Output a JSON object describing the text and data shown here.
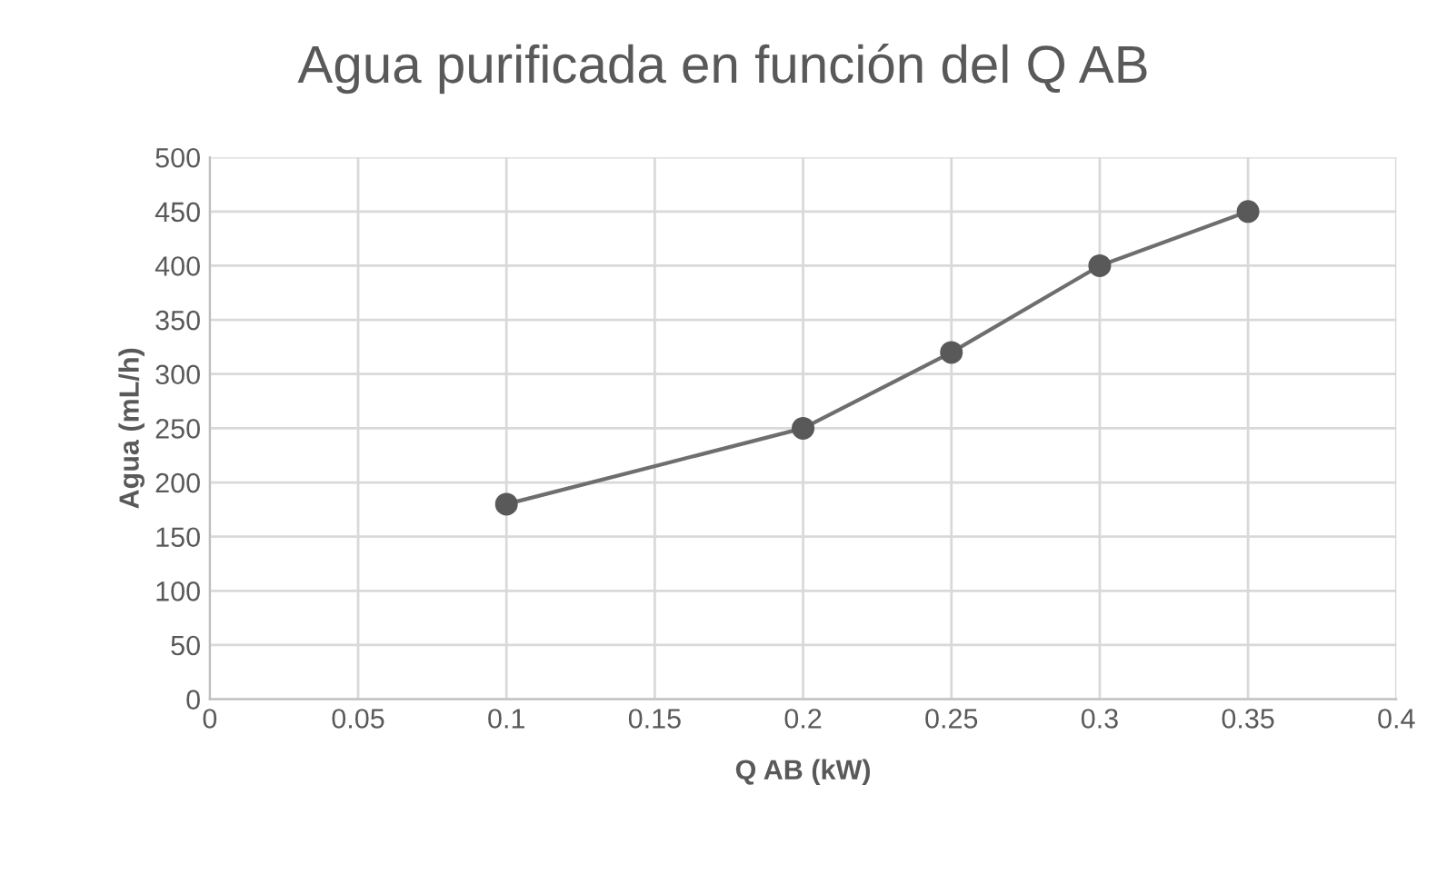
{
  "chart_data": {
    "type": "line",
    "title": "Agua purificada en función del Q AB",
    "xlabel": "Q AB (kW)",
    "ylabel": "Agua (mL/h)",
    "x": [
      0.1,
      0.2,
      0.25,
      0.3,
      0.35
    ],
    "series": [
      {
        "color": "#6e6e6e",
        "values": [
          180,
          250,
          320,
          400,
          450
        ]
      }
    ],
    "xlim": [
      0,
      0.4
    ],
    "xticks": [
      0,
      0.05,
      0.1,
      0.15,
      0.2,
      0.25,
      0.3,
      0.35,
      0.4
    ],
    "ylim": [
      0,
      500
    ],
    "yticks": [
      0,
      50,
      100,
      150,
      200,
      250,
      300,
      350,
      400,
      450,
      500
    ],
    "grid": true,
    "marker": "circle",
    "line_style": "solid",
    "legend": false
  }
}
